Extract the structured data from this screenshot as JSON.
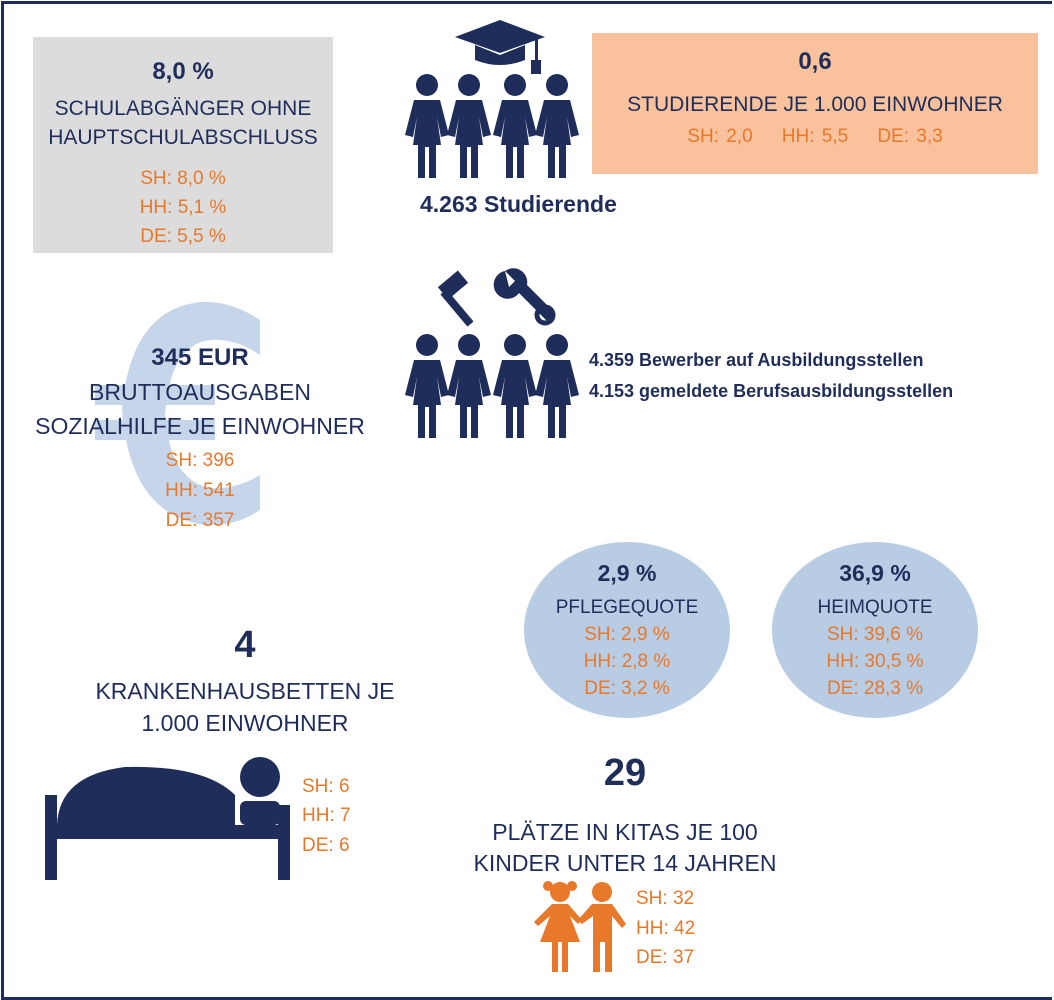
{
  "schulabgaenger": {
    "value": "8,0 %",
    "label": [
      "SCHULABGÄNGER OHNE",
      "HAUPTSCHULABSCHLUSS"
    ],
    "comparisons": [
      "SH: 8,0 %",
      "HH: 5,1 %",
      "DE: 5,5 %"
    ]
  },
  "studierende": {
    "count": "4.263 Studierende"
  },
  "studierende_je_einwohner": {
    "value": "0,6",
    "label": "STUDIERENDE JE 1.000 EINWOHNER",
    "comparisons": [
      "SH: 2,0",
      "HH: 5,5",
      "DE: 3,3"
    ]
  },
  "ausbildung": {
    "lines": [
      "4.359 Bewerber auf Ausbildungsstellen",
      "4.153 gemeldete Berufsausbildungsstellen"
    ]
  },
  "sozialhilfe": {
    "value": "345 EUR",
    "label": [
      "BRUTTOAUSGABEN",
      "SOZIALHILFE JE EINWOHNER"
    ],
    "comparisons": [
      "SH: 396",
      "HH: 541",
      "DE: 357"
    ]
  },
  "pflegequote": {
    "value": "2,9 %",
    "label": "PFLEGEQUOTE",
    "comparisons": [
      "SH: 2,9 %",
      "HH: 2,8 %",
      "DE: 3,2 %"
    ]
  },
  "heimquote": {
    "value": "36,9 %",
    "label": "HEIMQUOTE",
    "comparisons": [
      "SH: 39,6 %",
      "HH: 30,5 %",
      "DE: 28,3 %"
    ]
  },
  "krankenhaus": {
    "value": "4",
    "label": [
      "KRANKENHAUSBETTEN JE",
      "1.000 EINWOHNER"
    ],
    "comparisons": [
      "SH: 6",
      "HH: 7",
      "DE: 6"
    ]
  },
  "kitas": {
    "value": "29",
    "label": [
      "PLÄTZE IN KITAS JE 100",
      "KINDER UNTER 14 JAHREN"
    ],
    "comparisons": [
      "SH: 32",
      "HH: 42",
      "DE: 37"
    ]
  }
}
